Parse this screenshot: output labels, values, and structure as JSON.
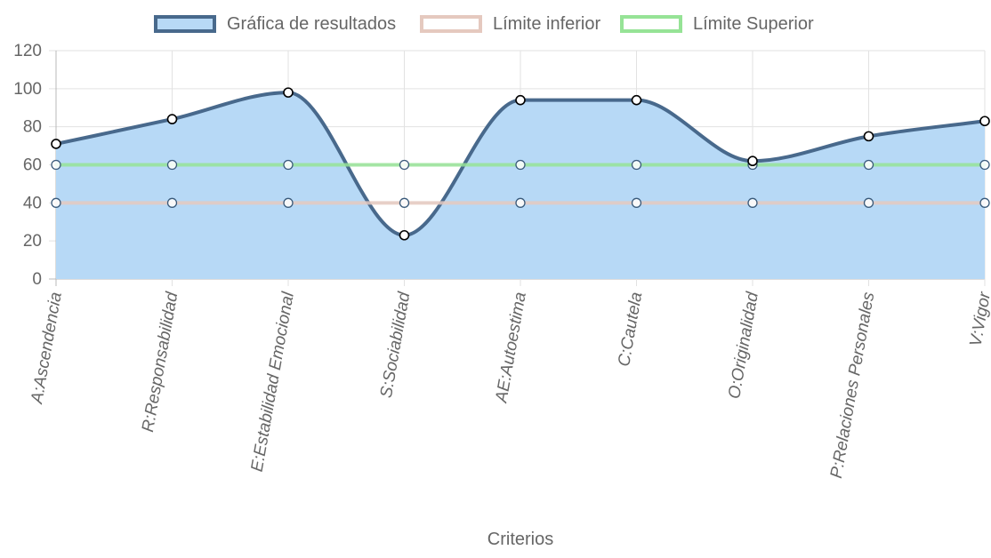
{
  "chart_data": {
    "type": "line",
    "categories": [
      "A:Ascendencia",
      "R:Responsabilidad",
      "E:Estabilidad Emocional",
      "S:Sociabilidad",
      "AE:Autoestima",
      "C:Cautela",
      "O:Originalidad",
      "P:Relaciones Personales",
      "V:Vigor"
    ],
    "series": [
      {
        "name": "Gráfica de resultados",
        "values": [
          71,
          84,
          98,
          23,
          94,
          94,
          62,
          75,
          83
        ],
        "color": "#48698c",
        "fill": "#b7d9f6",
        "filled": true
      },
      {
        "name": "Límite inferior",
        "values": [
          40,
          40,
          40,
          40,
          40,
          40,
          40,
          40,
          40
        ],
        "color": "#e5c9bf",
        "filled": false
      },
      {
        "name": "Límite Superior",
        "values": [
          60,
          60,
          60,
          60,
          60,
          60,
          60,
          60,
          60
        ],
        "color": "#96e396",
        "filled": false
      }
    ],
    "xlabel": "Criterios",
    "ylabel": "",
    "ylim": [
      0,
      120
    ],
    "yticks": [
      0,
      20,
      40,
      60,
      80,
      100,
      120
    ],
    "grid": true,
    "legend_position": "top-center"
  }
}
